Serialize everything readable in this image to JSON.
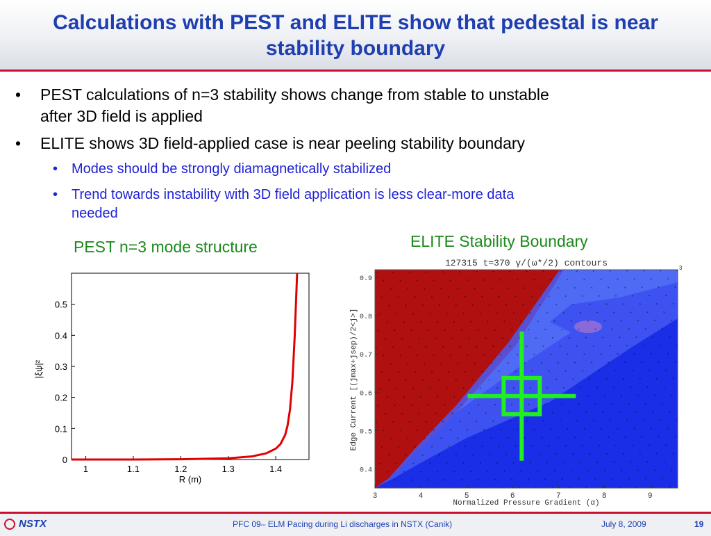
{
  "slide": {
    "title_line1": "Calculations with PEST and ELITE show that pedestal is near",
    "title_line2": "stability boundary",
    "bullets": [
      {
        "line1": "PEST calculations of n=3 stability shows change from stable to unstable",
        "line2": "after 3D field is applied"
      },
      {
        "line1": "ELITE shows 3D field-applied case is near peeling stability boundary"
      }
    ],
    "subbullets": [
      {
        "line1": "Modes should be strongly diamagnetically stabilized"
      },
      {
        "line1": "Trend towards instability with 3D field application is less clear-more data",
        "line2": "needed"
      }
    ],
    "bullet_char": "•"
  },
  "pest": {
    "label": "PEST n=3 mode structure",
    "chart_data": {
      "type": "line",
      "xlabel": "R (m)",
      "ylabel": "|ξψ|²",
      "xlim": [
        0.97,
        1.47
      ],
      "ylim": [
        0,
        0.6
      ],
      "xticks": [
        "1",
        "1.1",
        "1.2",
        "1.3",
        "1.4"
      ],
      "yticks": [
        "0",
        "0.1",
        "0.2",
        "0.3",
        "0.4",
        "0.5"
      ],
      "series": [
        {
          "color": "#e00000",
          "x": [
            0.97,
            1.1,
            1.2,
            1.3,
            1.35,
            1.38,
            1.4,
            1.41,
            1.42,
            1.425,
            1.43,
            1.435,
            1.44,
            1.445
          ],
          "y": [
            0.0,
            0.0,
            0.001,
            0.004,
            0.01,
            0.02,
            0.035,
            0.05,
            0.08,
            0.11,
            0.16,
            0.25,
            0.4,
            0.6
          ]
        }
      ]
    }
  },
  "elite": {
    "label": "ELITE Stability Boundary",
    "plot_title": "127315 t=370   γ/(ω*/2)  contours",
    "xlabel": "Normalized Pressure Gradient (α)",
    "ylabel": "Edge Current [(jmax+jsep)/2<j>]",
    "corner_label": "3",
    "chart_data": {
      "type": "heatmap",
      "xlim": [
        3,
        9.6
      ],
      "ylim": [
        0.35,
        0.92
      ],
      "xticks": [
        "3",
        "4",
        "5",
        "6",
        "7",
        "8",
        "9"
      ],
      "yticks": [
        "0.4",
        "0.5",
        "0.6",
        "0.7",
        "0.8",
        "0.9"
      ],
      "unstable_color": "#b01010",
      "stable_color": "#1a2ee8",
      "marker": {
        "x": 6.2,
        "y": 0.59,
        "color": "#22ee22"
      }
    }
  },
  "footer": {
    "logo_text": "NSTX",
    "center": "PFC 09– ELM Pacing during Li discharges in NSTX (Canik)",
    "date": "July 8, 2009",
    "page": "19"
  }
}
